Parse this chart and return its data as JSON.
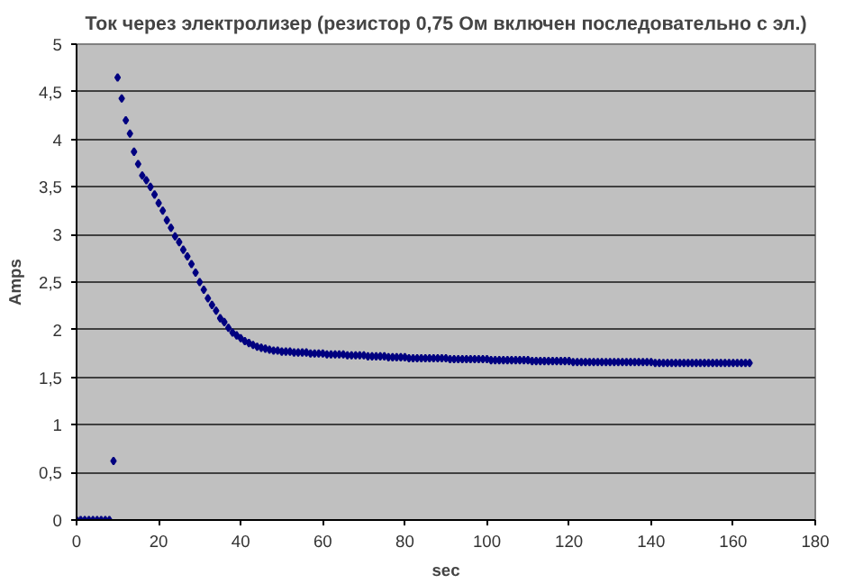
{
  "chart_data": {
    "type": "scatter",
    "title": "Ток через электролизер (резистор 0,75 Ом включен последовательно с эл.)",
    "xlabel": "sec",
    "ylabel": "Amps",
    "xlim": [
      0,
      180
    ],
    "xticks": [
      0,
      20,
      40,
      60,
      80,
      100,
      120,
      140,
      160,
      180
    ],
    "ylim": [
      0,
      5
    ],
    "yticks": [
      0,
      {
        "value": 0.5,
        "label": "0,5"
      },
      1,
      {
        "value": 1.5,
        "label": "1,5"
      },
      2,
      {
        "value": 2.5,
        "label": "2,5"
      },
      3,
      {
        "value": 3.5,
        "label": "3,5"
      },
      4,
      {
        "value": 4.5,
        "label": "4,5"
      },
      5
    ],
    "grid": "y",
    "marker": "diamond",
    "series": [
      {
        "color": "#000080",
        "x": [
          0,
          1,
          2,
          3,
          4,
          5,
          6,
          7,
          8,
          9,
          10,
          11,
          12,
          13,
          14,
          15,
          16,
          17,
          18,
          19,
          20,
          21,
          22,
          23,
          24,
          25,
          26,
          27,
          28,
          29,
          30,
          31,
          32,
          33,
          34,
          35,
          36,
          37,
          38,
          39,
          40,
          41,
          42,
          43,
          44,
          45,
          46,
          47,
          48,
          49,
          50,
          51,
          52,
          53,
          54,
          55,
          56,
          57,
          58,
          59,
          60,
          61,
          62,
          63,
          64,
          65,
          66,
          67,
          68,
          69,
          70,
          71,
          72,
          73,
          74,
          75,
          76,
          77,
          78,
          79,
          80,
          81,
          82,
          83,
          84,
          85,
          86,
          87,
          88,
          89,
          90,
          91,
          92,
          93,
          94,
          95,
          96,
          97,
          98,
          99,
          100,
          101,
          102,
          103,
          104,
          105,
          106,
          107,
          108,
          109,
          110,
          111,
          112,
          113,
          114,
          115,
          116,
          117,
          118,
          119,
          120,
          121,
          122,
          123,
          124,
          125,
          126,
          127,
          128,
          129,
          130,
          131,
          132,
          133,
          134,
          135,
          136,
          137,
          138,
          139,
          140,
          141,
          142,
          143,
          144,
          145,
          146,
          147,
          148,
          149,
          150,
          151,
          152,
          153,
          154,
          155,
          156,
          157,
          158,
          159,
          160,
          161,
          162,
          163,
          164
        ],
        "values": [
          0,
          0,
          0,
          0,
          0,
          0,
          0,
          0,
          0,
          0.62,
          4.65,
          4.43,
          4.2,
          4.06,
          3.87,
          3.74,
          3.62,
          3.57,
          3.5,
          3.42,
          3.33,
          3.25,
          3.15,
          3.07,
          2.98,
          2.92,
          2.84,
          2.77,
          2.69,
          2.6,
          2.5,
          2.42,
          2.33,
          2.26,
          2.2,
          2.12,
          2.08,
          2.02,
          1.97,
          1.94,
          1.91,
          1.88,
          1.86,
          1.84,
          1.82,
          1.81,
          1.8,
          1.79,
          1.78,
          1.78,
          1.77,
          1.77,
          1.77,
          1.76,
          1.76,
          1.76,
          1.76,
          1.75,
          1.75,
          1.75,
          1.75,
          1.74,
          1.74,
          1.74,
          1.74,
          1.74,
          1.73,
          1.73,
          1.73,
          1.73,
          1.73,
          1.72,
          1.72,
          1.72,
          1.72,
          1.72,
          1.71,
          1.71,
          1.71,
          1.71,
          1.71,
          1.7,
          1.7,
          1.7,
          1.7,
          1.7,
          1.7,
          1.7,
          1.7,
          1.7,
          1.7,
          1.69,
          1.69,
          1.69,
          1.69,
          1.69,
          1.69,
          1.69,
          1.69,
          1.69,
          1.69,
          1.68,
          1.68,
          1.68,
          1.68,
          1.68,
          1.68,
          1.68,
          1.68,
          1.68,
          1.68,
          1.67,
          1.67,
          1.67,
          1.67,
          1.67,
          1.67,
          1.67,
          1.67,
          1.67,
          1.67,
          1.66,
          1.66,
          1.66,
          1.66,
          1.66,
          1.66,
          1.66,
          1.66,
          1.66,
          1.66,
          1.66,
          1.66,
          1.66,
          1.66,
          1.66,
          1.66,
          1.66,
          1.66,
          1.66,
          1.66,
          1.65,
          1.65,
          1.65,
          1.65,
          1.65,
          1.65,
          1.65,
          1.65,
          1.65,
          1.65,
          1.65,
          1.65,
          1.65,
          1.65,
          1.65,
          1.65,
          1.65,
          1.65,
          1.65,
          1.65,
          1.65,
          1.65,
          1.65,
          1.65
        ]
      }
    ]
  }
}
